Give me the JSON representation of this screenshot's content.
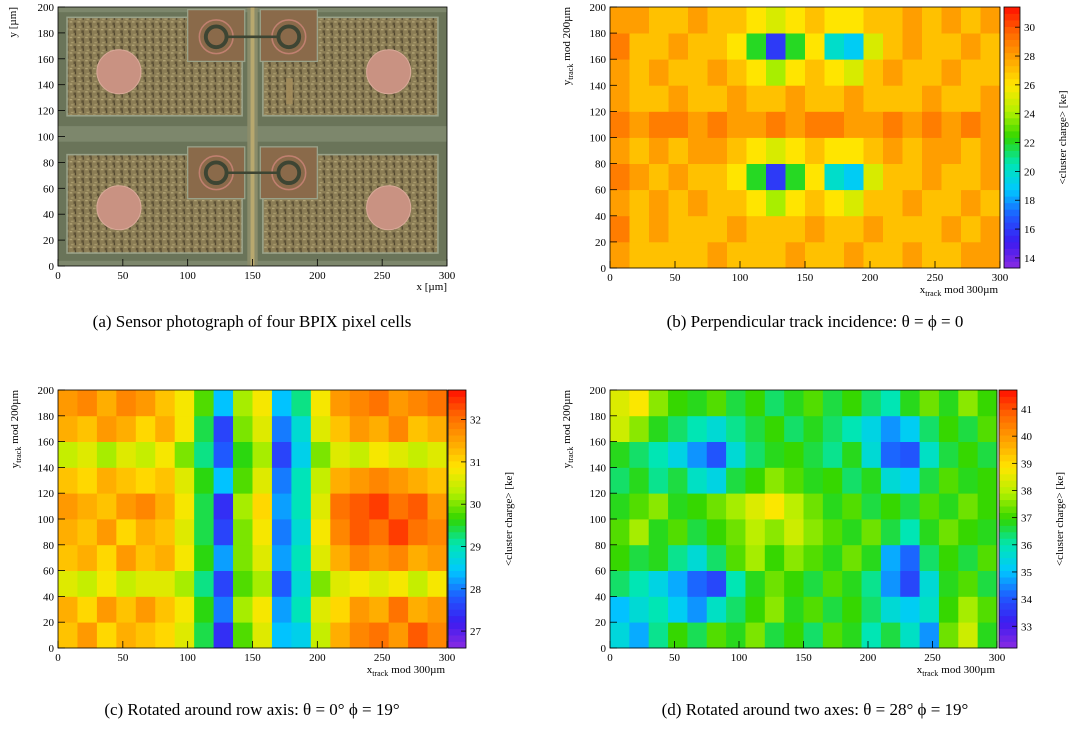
{
  "chart_data": [
    {
      "type": "image",
      "caption": "(a)  Sensor photograph of four BPIX pixel cells",
      "xlabel": "x [µm]",
      "ylabel": "y [µm]",
      "xlim": [
        0,
        300
      ],
      "ylim": [
        0,
        200
      ],
      "xticks": [
        0,
        50,
        100,
        150,
        200,
        250,
        300
      ],
      "yticks": [
        0,
        20,
        40,
        60,
        80,
        100,
        120,
        140,
        160,
        180,
        200
      ]
    },
    {
      "type": "heatmap",
      "caption": "(b)  Perpendicular track incidence:  θ = ϕ = 0",
      "xlabel": {
        "main": "x",
        "sub": "track",
        "rest": "mod 300µm"
      },
      "ylabel": {
        "main": "y",
        "sub": "track",
        "rest": "mod 200µm"
      },
      "zlabel": "<cluster charge> [ke]",
      "xlim": [
        0,
        300
      ],
      "ylim": [
        0,
        200
      ],
      "zlim": [
        13.3,
        31.4
      ],
      "xticks": [
        0,
        50,
        100,
        150,
        200,
        250,
        300
      ],
      "yticks": [
        0,
        20,
        40,
        60,
        80,
        100,
        120,
        140,
        160,
        180,
        200
      ],
      "zticks": [
        14,
        16,
        18,
        20,
        22,
        24,
        26,
        28,
        30
      ],
      "colormap": [
        "#8a2be2",
        "#3c1bf0",
        "#1e5bff",
        "#00c8ff",
        "#00e6b4",
        "#2fd600",
        "#b4f000",
        "#ffe600",
        "#ffa500",
        "#ff6a00",
        "#ff1000"
      ],
      "z": [
        [
          28,
          27,
          27,
          27,
          27,
          28,
          27,
          27,
          27,
          28,
          27,
          27,
          28,
          27,
          27,
          28,
          27,
          27,
          28,
          28
        ],
        [
          29,
          27,
          28,
          27,
          27,
          27,
          28,
          27,
          27,
          27,
          28,
          27,
          27,
          28,
          27,
          27,
          27,
          28,
          27,
          28
        ],
        [
          28,
          27,
          28,
          27,
          28,
          27,
          27,
          26,
          24,
          26,
          27,
          26,
          25,
          27,
          27,
          28,
          27,
          27,
          28,
          27
        ],
        [
          29,
          28,
          27,
          28,
          27,
          27,
          26,
          22,
          16,
          22,
          26,
          20,
          19,
          25,
          27,
          27,
          28,
          27,
          27,
          28
        ],
        [
          28,
          27,
          28,
          27,
          28,
          28,
          27,
          26,
          25,
          26,
          27,
          26,
          26,
          27,
          28,
          27,
          28,
          28,
          27,
          28
        ],
        [
          29,
          28,
          29,
          29,
          28,
          29,
          28,
          28,
          29,
          28,
          29,
          29,
          28,
          28,
          29,
          28,
          29,
          28,
          29,
          28
        ],
        [
          28,
          27,
          27,
          28,
          27,
          27,
          28,
          27,
          27,
          28,
          27,
          27,
          28,
          27,
          27,
          27,
          28,
          27,
          27,
          28
        ],
        [
          28,
          27,
          28,
          27,
          27,
          28,
          27,
          26,
          24,
          26,
          27,
          26,
          25,
          27,
          28,
          27,
          27,
          28,
          27,
          27
        ],
        [
          29,
          27,
          27,
          28,
          27,
          27,
          26,
          22,
          16,
          22,
          26,
          20,
          19,
          25,
          27,
          28,
          27,
          27,
          28,
          27
        ],
        [
          28,
          28,
          27,
          27,
          28,
          27,
          27,
          26,
          25,
          26,
          27,
          26,
          26,
          27,
          27,
          28,
          27,
          28,
          27,
          28
        ]
      ]
    },
    {
      "type": "heatmap",
      "caption": "(c)  Rotated around row axis:  θ = 0°    ϕ = 19°",
      "xlabel": {
        "main": "x",
        "sub": "track",
        "rest": "mod 300µm"
      },
      "ylabel": {
        "main": "y",
        "sub": "track",
        "rest": "mod 200µm"
      },
      "zlabel": "<cluster charge> [ke]",
      "xlim": [
        0,
        300
      ],
      "ylim": [
        0,
        200
      ],
      "zlim": [
        26.6,
        32.7
      ],
      "xticks": [
        0,
        50,
        100,
        150,
        200,
        250,
        300
      ],
      "yticks": [
        0,
        20,
        40,
        60,
        80,
        100,
        120,
        140,
        160,
        180,
        200
      ],
      "zticks": [
        27,
        28,
        29,
        30,
        31,
        32
      ],
      "colormap": [
        "#8a2be2",
        "#3c1bf0",
        "#1e5bff",
        "#00c8ff",
        "#00e6b4",
        "#2fd600",
        "#b4f000",
        "#ffe600",
        "#ffa500",
        "#ff6a00",
        "#ff1000"
      ],
      "z": [
        [
          31.2,
          31.6,
          31.0,
          31.4,
          31.2,
          31.0,
          30.6,
          29.4,
          27.4,
          29.8,
          30.6,
          28.4,
          28.6,
          30.4,
          31.4,
          31.8,
          32.0,
          31.6,
          32.2,
          31.8
        ],
        [
          31.4,
          31.0,
          31.6,
          31.2,
          31.6,
          31.2,
          30.8,
          29.6,
          28.0,
          30.2,
          30.8,
          28.2,
          29.0,
          30.6,
          31.0,
          31.6,
          31.4,
          32.0,
          31.4,
          31.6
        ],
        [
          30.6,
          30.4,
          30.8,
          30.4,
          30.6,
          30.6,
          30.2,
          29.2,
          27.6,
          29.8,
          30.2,
          27.8,
          28.8,
          30.0,
          30.6,
          30.8,
          30.6,
          30.8,
          30.4,
          30.8
        ],
        [
          31.2,
          31.4,
          31.0,
          31.6,
          31.2,
          31.4,
          30.8,
          29.6,
          28.2,
          30.0,
          30.6,
          28.2,
          29.0,
          30.6,
          31.4,
          31.8,
          31.6,
          31.8,
          31.4,
          31.6
        ],
        [
          31.4,
          31.2,
          31.6,
          31.0,
          31.4,
          31.2,
          30.6,
          29.4,
          27.6,
          30.0,
          30.8,
          28.0,
          28.8,
          30.8,
          31.8,
          32.2,
          32.0,
          32.4,
          32.0,
          31.8
        ],
        [
          31.6,
          31.4,
          31.2,
          31.6,
          31.8,
          31.4,
          30.8,
          29.4,
          27.4,
          30.2,
          31.0,
          28.2,
          29.0,
          30.6,
          32.0,
          32.2,
          32.4,
          32.0,
          32.2,
          31.6
        ],
        [
          31.2,
          31.0,
          31.4,
          31.2,
          31.0,
          31.2,
          30.6,
          29.6,
          28.4,
          29.8,
          30.6,
          28.0,
          29.0,
          30.4,
          31.4,
          31.6,
          31.8,
          31.6,
          31.4,
          31.2
        ],
        [
          30.4,
          30.6,
          30.2,
          30.6,
          30.4,
          30.8,
          30.0,
          29.2,
          27.8,
          29.6,
          30.2,
          27.6,
          28.6,
          30.0,
          30.6,
          30.4,
          30.8,
          30.6,
          30.4,
          30.6
        ],
        [
          31.4,
          31.2,
          31.6,
          31.4,
          31.0,
          31.4,
          30.8,
          29.4,
          27.6,
          30.0,
          30.6,
          28.0,
          28.8,
          30.6,
          31.2,
          31.6,
          31.4,
          31.8,
          31.2,
          31.4
        ],
        [
          31.6,
          31.8,
          31.4,
          31.8,
          31.6,
          31.2,
          30.8,
          29.8,
          28.4,
          30.2,
          30.8,
          28.4,
          29.2,
          30.8,
          31.6,
          31.8,
          32.0,
          31.6,
          31.8,
          32.0
        ]
      ]
    },
    {
      "type": "heatmap",
      "caption": "(d)  Rotated around two axes:  θ = 28°    ϕ = 19°",
      "xlabel": {
        "main": "x",
        "sub": "track",
        "rest": "mod 300µm"
      },
      "ylabel": {
        "main": "y",
        "sub": "track",
        "rest": "mod 200µm"
      },
      "zlabel": "<cluster charge> [ke]",
      "xlim": [
        0,
        300
      ],
      "ylim": [
        0,
        200
      ],
      "zlim": [
        32.2,
        41.7
      ],
      "xticks": [
        0,
        50,
        100,
        150,
        200,
        250,
        300
      ],
      "yticks": [
        0,
        20,
        40,
        60,
        80,
        100,
        120,
        140,
        160,
        180,
        200
      ],
      "zticks": [
        33,
        34,
        35,
        36,
        37,
        38,
        39,
        40,
        41
      ],
      "colormap": [
        "#8a2be2",
        "#3c1bf0",
        "#1e5bff",
        "#00c8ff",
        "#00e6b4",
        "#2fd600",
        "#b4f000",
        "#ffe600",
        "#ffa500",
        "#ff6a00",
        "#ff1000"
      ],
      "z": [
        [
          35.5,
          34.8,
          36.2,
          37.0,
          36.5,
          37.2,
          36.8,
          37.5,
          36.6,
          37.0,
          36.4,
          37.2,
          36.8,
          36.0,
          36.6,
          35.8,
          34.6,
          37.4,
          38.2,
          36.8
        ],
        [
          35.0,
          35.6,
          36.0,
          35.2,
          34.6,
          35.8,
          36.4,
          37.0,
          37.6,
          36.8,
          37.2,
          36.6,
          37.0,
          36.4,
          35.6,
          35.2,
          35.8,
          37.0,
          37.8,
          37.2
        ],
        [
          36.4,
          36.0,
          35.4,
          34.8,
          34.2,
          33.8,
          36.0,
          36.8,
          37.4,
          37.0,
          36.6,
          37.2,
          36.8,
          36.2,
          34.6,
          33.8,
          35.6,
          36.8,
          37.2,
          36.6
        ],
        [
          37.0,
          36.6,
          36.8,
          36.2,
          35.6,
          36.4,
          37.2,
          37.8,
          37.0,
          37.6,
          37.2,
          36.8,
          37.4,
          36.8,
          34.8,
          34.2,
          36.4,
          37.0,
          36.6,
          37.2
        ],
        [
          37.2,
          37.8,
          36.8,
          37.2,
          36.6,
          37.0,
          37.4,
          38.0,
          37.6,
          38.2,
          37.6,
          37.2,
          36.8,
          37.4,
          36.6,
          36.0,
          36.8,
          37.4,
          37.0,
          36.8
        ],
        [
          36.8,
          37.2,
          37.6,
          36.8,
          37.0,
          37.4,
          37.8,
          38.4,
          38.8,
          38.0,
          37.4,
          36.8,
          37.2,
          36.6,
          37.0,
          36.6,
          37.2,
          36.8,
          37.4,
          37.0
        ],
        [
          36.4,
          36.8,
          36.2,
          36.6,
          35.8,
          35.4,
          36.6,
          37.0,
          37.6,
          37.2,
          36.8,
          37.0,
          36.4,
          36.8,
          35.6,
          35.2,
          36.6,
          37.2,
          36.8,
          37.0
        ],
        [
          36.8,
          36.4,
          36.0,
          35.4,
          34.6,
          34.0,
          35.6,
          36.4,
          36.8,
          37.0,
          36.6,
          36.2,
          36.8,
          35.6,
          34.2,
          34.0,
          35.8,
          36.6,
          37.0,
          36.6
        ],
        [
          38.2,
          37.6,
          36.8,
          36.4,
          36.0,
          35.6,
          36.2,
          36.6,
          37.0,
          36.4,
          36.8,
          36.4,
          36.0,
          35.4,
          34.6,
          35.2,
          36.4,
          37.0,
          36.6,
          37.2
        ],
        [
          38.4,
          38.8,
          37.6,
          37.0,
          36.8,
          37.2,
          36.6,
          37.0,
          36.4,
          36.8,
          37.2,
          36.6,
          37.0,
          36.4,
          36.0,
          36.8,
          37.4,
          36.8,
          37.6,
          37.0
        ]
      ]
    }
  ]
}
